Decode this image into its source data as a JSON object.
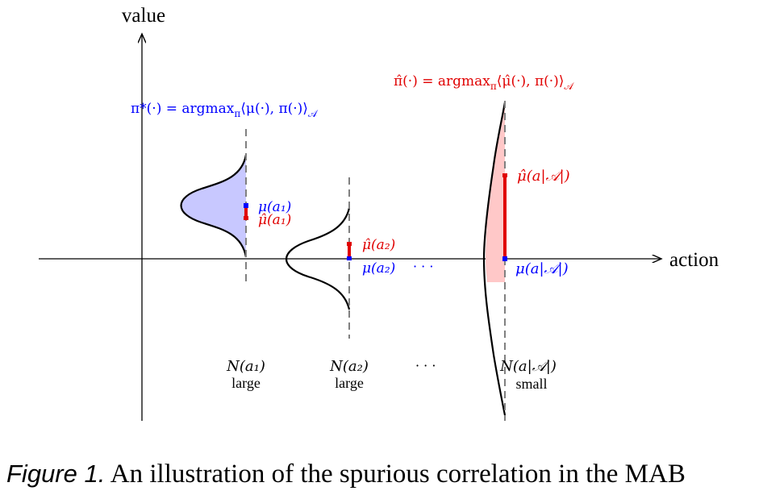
{
  "axes": {
    "y_label": "value",
    "x_label": "action"
  },
  "formulas": {
    "true_policy": "π*(·) = argmax",
    "true_policy_sub": "π",
    "true_policy_tail": "⟨μ(·), π(·)⟩",
    "true_policy_sub2": "𝒜",
    "est_policy": "π̂(·) = argmax",
    "est_policy_sub": "π",
    "est_policy_tail": "⟨μ̂(·), π(·)⟩",
    "est_policy_sub2": "𝒜"
  },
  "actions": [
    {
      "mu_label": "μ(a₁)",
      "mu_hat_label": "μ̂(a₁)",
      "n_label": "N(a₁)",
      "size_label": "large"
    },
    {
      "mu_label": "μ(a₂)",
      "mu_hat_label": "μ̂(a₂)",
      "n_label": "N(a₂)",
      "size_label": "large"
    },
    {
      "mu_label": "μ(a|𝒜|)",
      "mu_hat_label": "μ̂(a|𝒜|)",
      "n_label": "N(a|𝒜|)",
      "size_label": "small"
    }
  ],
  "ellipsis": "· · ·",
  "colors": {
    "true": "#0000ff",
    "estimate": "#e00000",
    "fill_true": "#c8c8ff",
    "fill_est": "#ffc8c8",
    "dashed": "#808080"
  },
  "caption": {
    "figure_label": "Figure 1.",
    "text": " An illustration of the spurious correlation in the MAB"
  }
}
